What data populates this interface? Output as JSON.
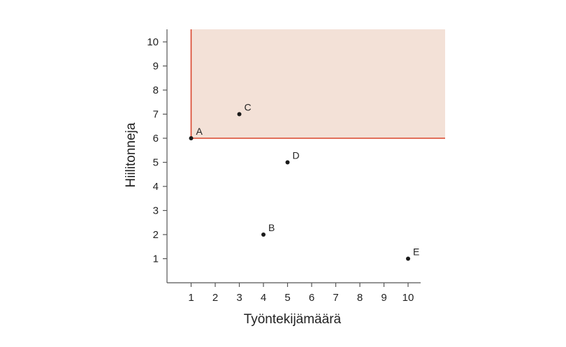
{
  "chart_data": {
    "type": "scatter",
    "xlabel": "Työntekijämäärä",
    "ylabel": "Hiilitonneja",
    "xlim": [
      0,
      10
    ],
    "ylim": [
      0,
      10
    ],
    "xticks": [
      1,
      2,
      3,
      4,
      5,
      6,
      7,
      8,
      9,
      10
    ],
    "yticks": [
      1,
      2,
      3,
      4,
      5,
      6,
      7,
      8,
      9,
      10
    ],
    "grid": false,
    "points": [
      {
        "label": "A",
        "x": 1,
        "y": 6
      },
      {
        "label": "B",
        "x": 4,
        "y": 2
      },
      {
        "label": "C",
        "x": 3,
        "y": 7
      },
      {
        "label": "D",
        "x": 5,
        "y": 5
      },
      {
        "label": "E",
        "x": 10,
        "y": 1
      }
    ],
    "shaded_region": {
      "x_from": 1,
      "y_from": 6,
      "fill": "#f3e1d7",
      "edge": "#d9442a"
    },
    "colors": {
      "axis": "#555555",
      "point": "#1a1a1a",
      "region_fill": "#f3e1d7",
      "region_edge": "#d9442a"
    }
  }
}
